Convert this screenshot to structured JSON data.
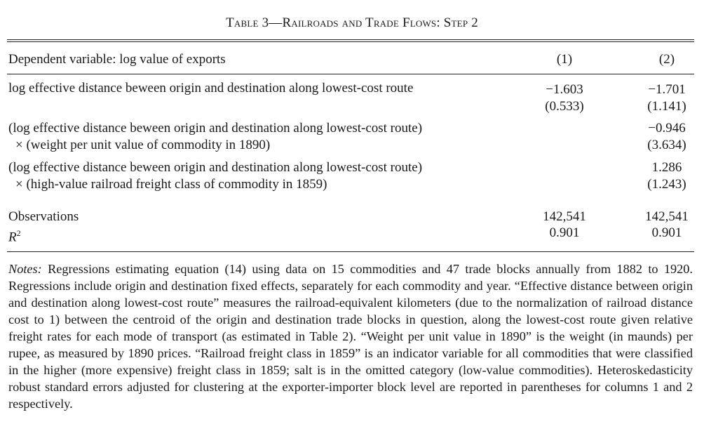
{
  "table": {
    "title": "Table 3—Railroads and Trade Flows: Step 2",
    "header": {
      "dependent_label": "Dependent variable: log value of exports",
      "col1": "(1)",
      "col2": "(2)"
    },
    "rows": [
      {
        "label_line1": "log effective distance beween origin and destination along lowest-cost route",
        "col1_coef": "−1.603",
        "col1_se": "(0.533)",
        "col2_coef": "−1.701",
        "col2_se": "(1.141)"
      },
      {
        "label_line1": "(log effective distance beween origin and destination along lowest-cost route)",
        "label_line2": "× (weight per unit value of commodity in 1890)",
        "col2_coef": "−0.946",
        "col2_se": "(3.634)"
      },
      {
        "label_line1": "(log effective distance beween origin and destination along lowest-cost route)",
        "label_line2": "× (high-value railroad freight class of commodity in 1859)",
        "col2_coef": "1.286",
        "col2_se": "(1.243)"
      }
    ],
    "observations": {
      "label": "Observations",
      "col1": "142,541",
      "col2": "142,541"
    },
    "r2": {
      "label": "R",
      "sup": "2",
      "col1": "0.901",
      "col2": "0.901"
    }
  },
  "notes": {
    "prefix": "Notes:",
    "text": "Regressions estimating equation (14) using data on 15 commodities and 47 trade blocks annually from 1882 to 1920. Regressions include origin and destination fixed effects, separately for each commodity and year. “Effective distance between origin and destination along lowest-cost route” measures the railroad-equivalent kilometers (due to the normalization of railroad distance cost to 1) between the centroid of the origin and destination trade blocks in question, along the lowest-cost route given relative freight rates for each mode of transport (as estimated in Table 2). “Weight per unit value in 1890” is the weight (in maunds) per rupee, as measured by 1890 prices. “Railroad freight class in 1859” is an indicator variable for all commodities that were classified in the higher (more expensive) freight class in 1859; salt is in the omitted category (low-value commodities). Heteroskedasticity robust standard errors adjusted for clustering at the exporter-importer block level are reported in parentheses for columns 1 and 2 respectively."
  }
}
